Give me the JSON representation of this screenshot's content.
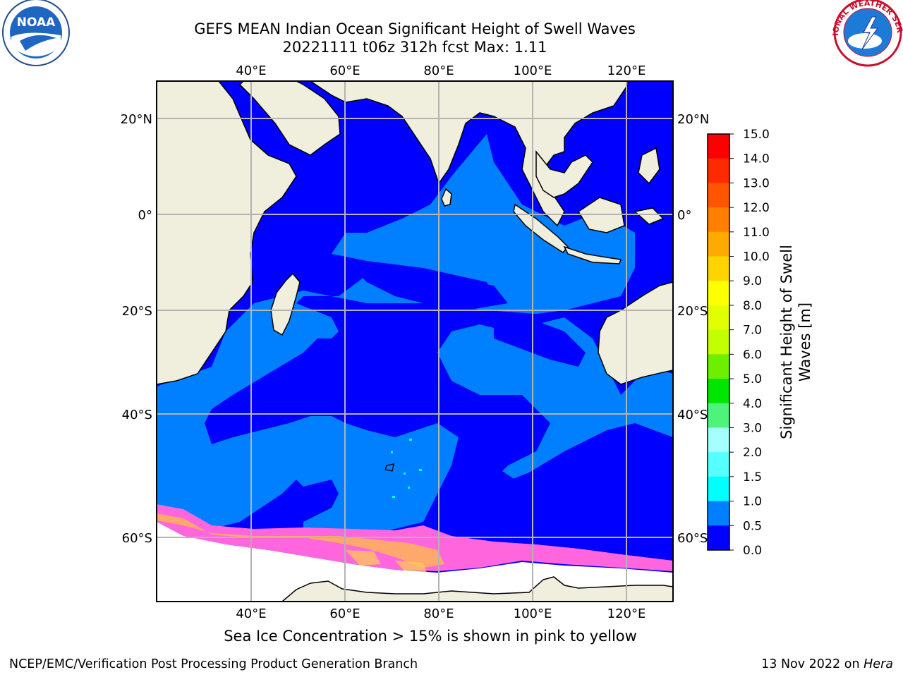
{
  "title_line1": "GEFS MEAN Indian Ocean Significant Height of Swell Waves",
  "title_line2": "20221111 t06z 312h fcst   Max: 1.11",
  "caption": "Sea Ice Concentration > 15% is shown in pink to yellow",
  "footer_left": "NCEP/EMC/Verification Post Processing Product Generation Branch",
  "footer_date": "13 Nov 2022 on",
  "footer_machine": "Hera",
  "logos": {
    "left": "NOAA",
    "right": "NATIONAL WEATHER SERVICE"
  },
  "map": {
    "lon_labels": [
      "40°E",
      "60°E",
      "80°E",
      "100°E",
      "120°E"
    ],
    "lat_labels": [
      "20°N",
      "0°",
      "20°S",
      "40°S",
      "60°S"
    ]
  },
  "colorbar": {
    "label_line1": "Significant Height of Swell",
    "label_line2": "Waves [m]",
    "ticks": [
      "15.0",
      "14.0",
      "13.0",
      "12.0",
      "11.0",
      "10.0",
      "9.0",
      "8.0",
      "7.0",
      "6.0",
      "5.0",
      "4.0",
      "3.0",
      "2.0",
      "1.5",
      "1.0",
      "0.5",
      "0.0"
    ],
    "colors": [
      "#ff0000",
      "#ff2a00",
      "#ff5500",
      "#ff8000",
      "#ffaa00",
      "#ffd400",
      "#ffff00",
      "#e1ff00",
      "#c3ff00",
      "#6fef00",
      "#00e600",
      "#4ef37c",
      "#a6ffff",
      "#55ffff",
      "#00ffff",
      "#0080ff",
      "#0000ff"
    ]
  },
  "colors": {
    "deep": "#0000ff",
    "mid": "#0080ff",
    "land": "#f0eedc",
    "ice": "#ff66dd"
  }
}
